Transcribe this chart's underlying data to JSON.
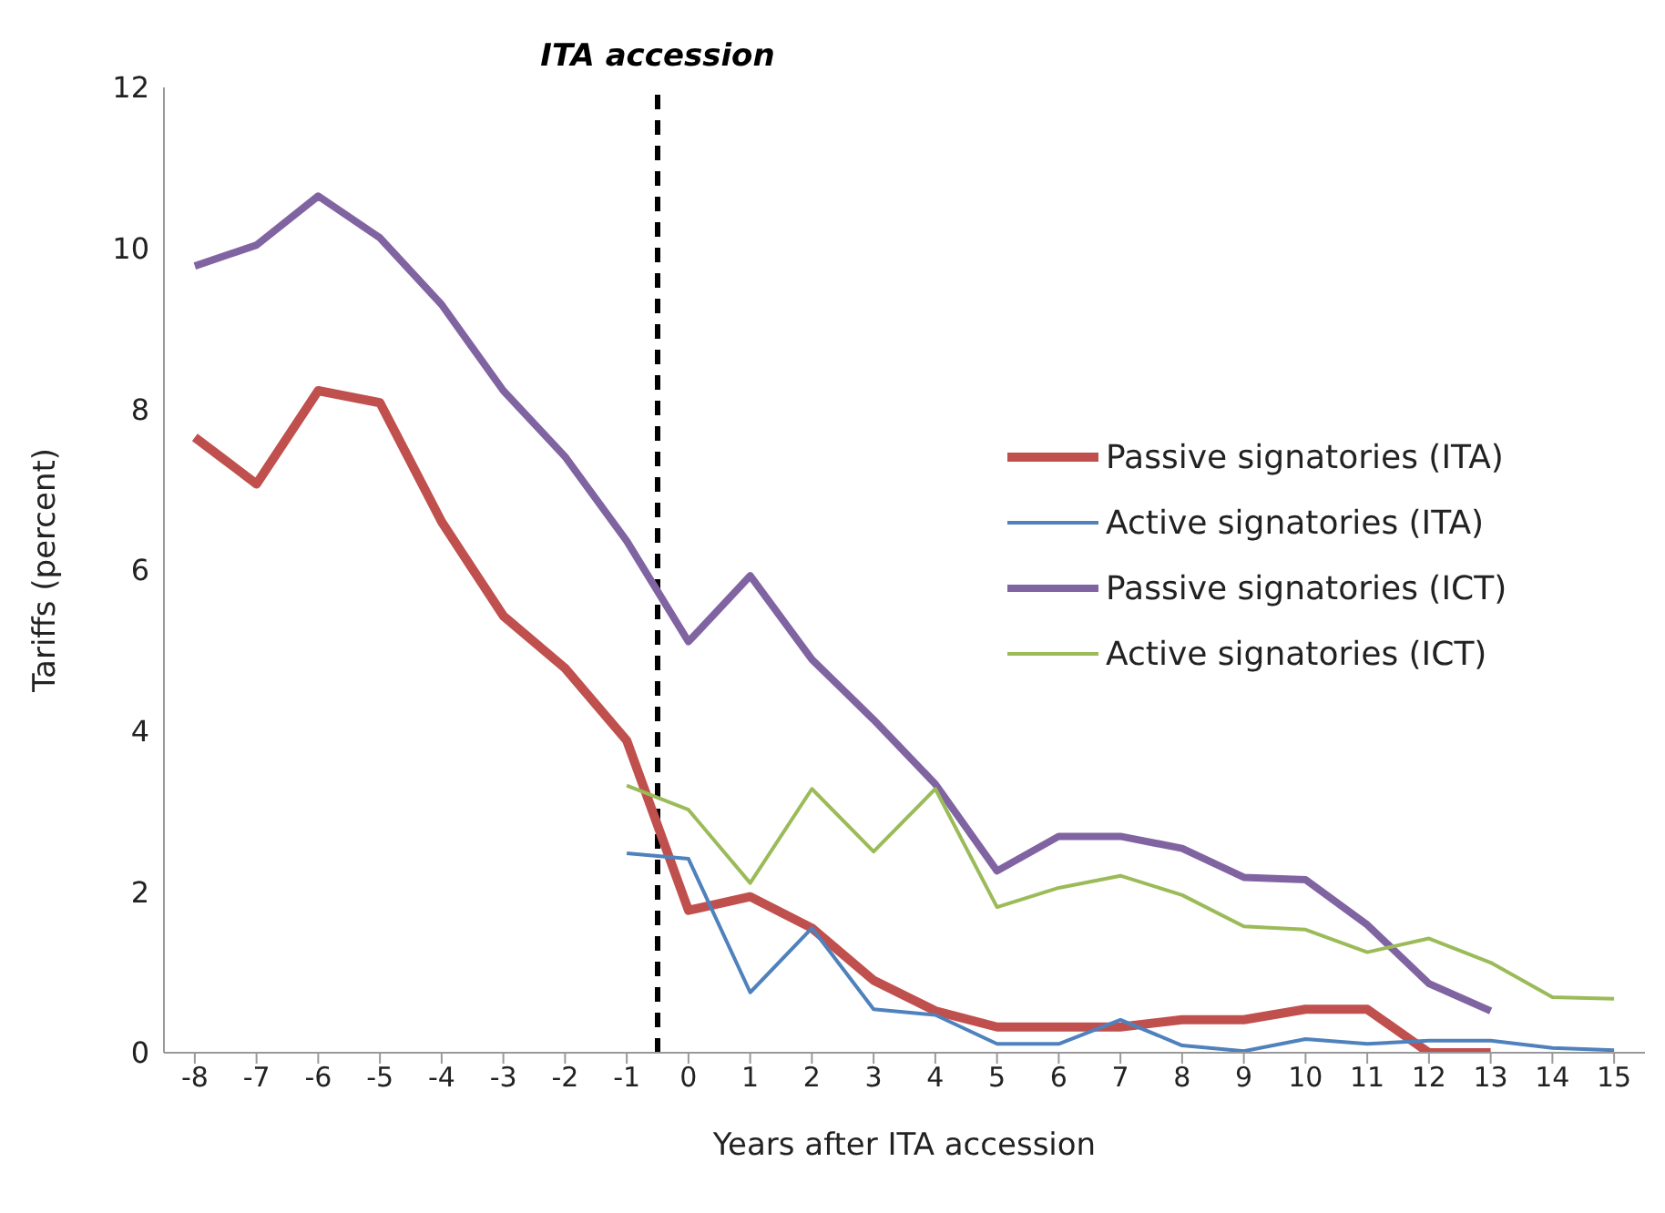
{
  "chart_data": {
    "type": "line",
    "xlabel": "Years after ITA accession",
    "ylabel": "Tariffs (percent)",
    "x": [
      -8,
      -7,
      -6,
      -5,
      -4,
      -3,
      -2,
      -1,
      0,
      1,
      2,
      3,
      4,
      5,
      6,
      7,
      8,
      9,
      10,
      11,
      12,
      13,
      14,
      15
    ],
    "xlim": [
      -8.5,
      15.5
    ],
    "xticks": [
      -8,
      -7,
      -6,
      -5,
      -4,
      -3,
      -2,
      -1,
      0,
      1,
      2,
      3,
      4,
      5,
      6,
      7,
      8,
      9,
      10,
      11,
      12,
      13,
      14,
      15
    ],
    "ylim": [
      0,
      12
    ],
    "yticks": [
      0,
      2,
      4,
      6,
      8,
      10,
      12
    ],
    "grid": false,
    "legend": "right",
    "marker": "none",
    "ref_lines": [
      {
        "axis": "x",
        "value": -0.5,
        "label": "ITA accession",
        "color": "#000000",
        "line_style": "dashed"
      }
    ],
    "series": [
      {
        "name": "Passive signatories (ITA)",
        "color": "#c0504d",
        "values": [
          7.65,
          7.07,
          8.23,
          8.08,
          6.6,
          5.43,
          4.78,
          3.88,
          1.77,
          1.94,
          1.55,
          0.9,
          0.52,
          0.32,
          0.32,
          0.32,
          0.41,
          0.41,
          0.54,
          0.54,
          0.0,
          0.0,
          null,
          null
        ]
      },
      {
        "name": "Active signatories (ITA)",
        "color": "#4f81bd",
        "values": [
          null,
          null,
          null,
          null,
          null,
          null,
          null,
          2.48,
          2.41,
          0.75,
          1.55,
          0.54,
          0.47,
          0.11,
          0.11,
          0.41,
          0.09,
          0.02,
          0.17,
          0.11,
          0.15,
          0.15,
          0.06,
          0.03
        ]
      },
      {
        "name": "Passive signatories (ICT)",
        "color": "#8064a2",
        "values": [
          9.78,
          10.04,
          10.65,
          10.13,
          9.3,
          8.23,
          7.41,
          6.36,
          5.11,
          5.93,
          4.89,
          4.14,
          3.34,
          2.26,
          2.69,
          2.69,
          2.54,
          2.18,
          2.15,
          1.59,
          0.86,
          0.52,
          null,
          null
        ]
      },
      {
        "name": "Active signatories (ICT)",
        "color": "#9bbb59",
        "values": [
          null,
          null,
          null,
          null,
          null,
          null,
          null,
          3.32,
          3.02,
          2.11,
          3.28,
          2.5,
          3.28,
          1.81,
          2.05,
          2.2,
          1.96,
          1.57,
          1.53,
          1.25,
          1.42,
          1.12,
          0.69,
          0.67
        ]
      }
    ]
  }
}
